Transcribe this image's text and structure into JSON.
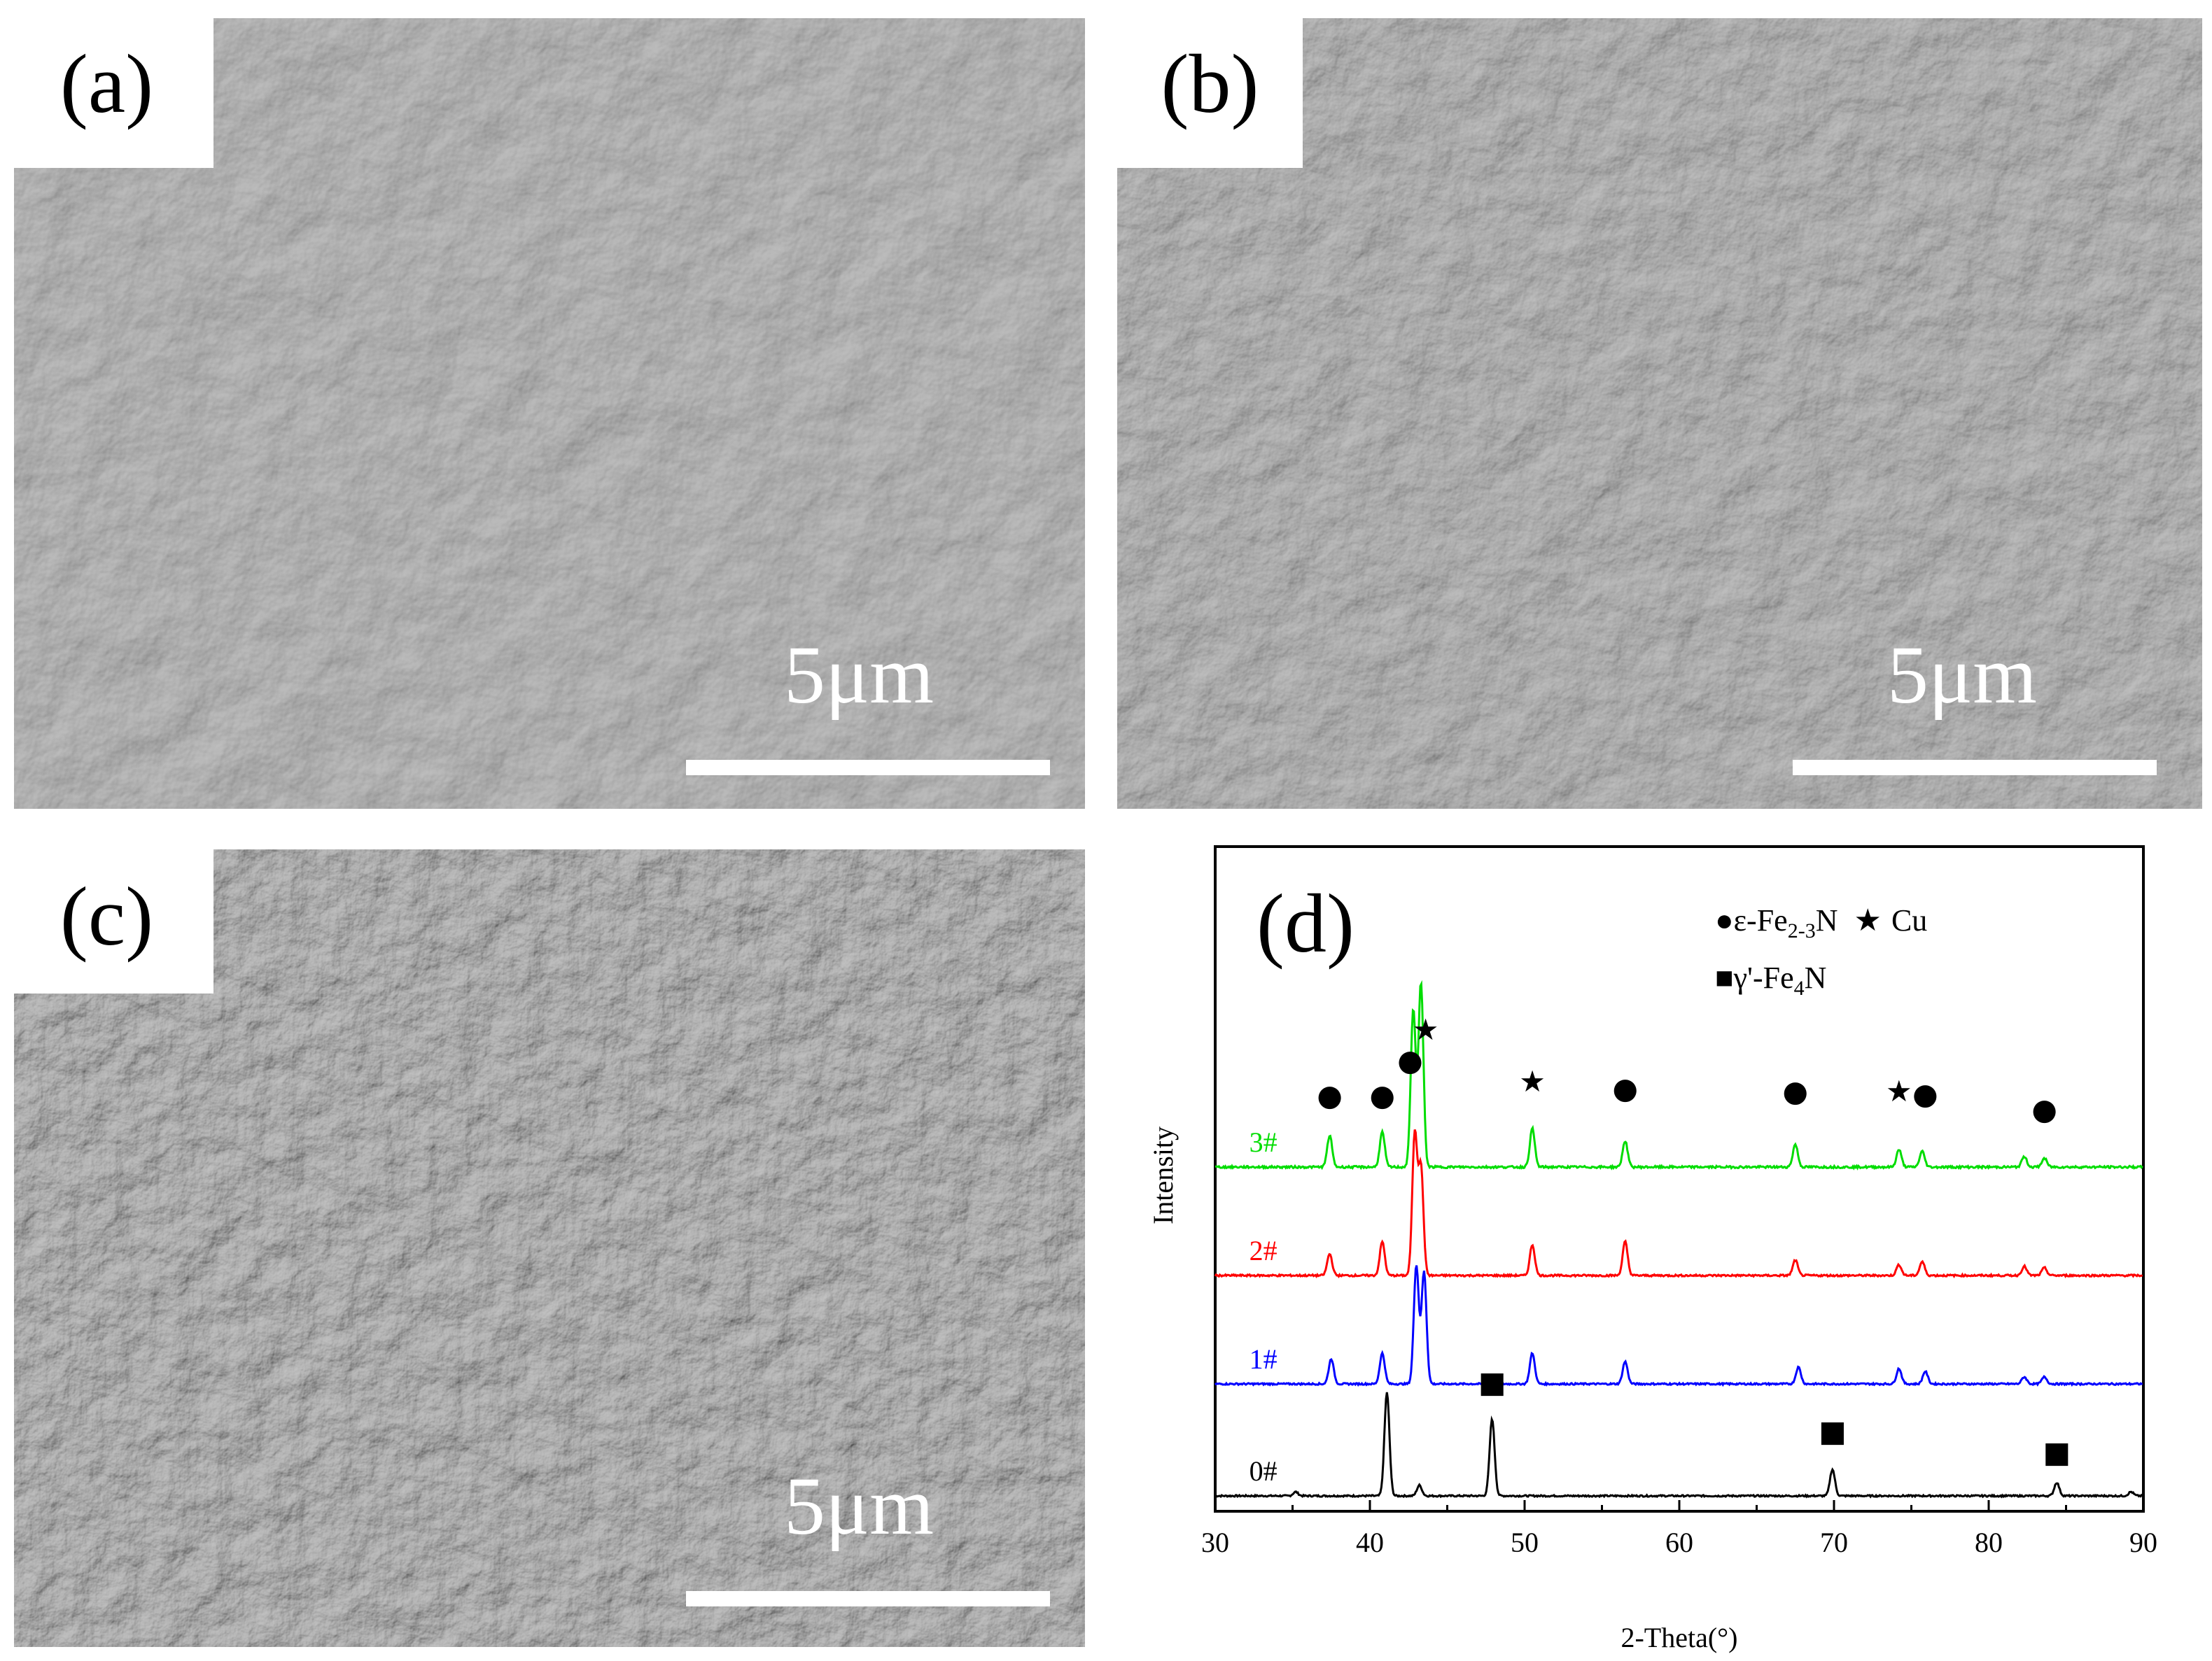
{
  "panels": {
    "a": {
      "label": "(a)",
      "scale": "5μm"
    },
    "b": {
      "label": "(b)",
      "scale": "5μm"
    },
    "c": {
      "label": "(c)",
      "scale": "5μm"
    },
    "d": {
      "label": "(d)"
    }
  },
  "chart_data": {
    "type": "line",
    "title": "",
    "xlabel": "2-Theta(°)",
    "ylabel": "Intensity",
    "xlim": [
      30,
      90
    ],
    "xticks": [
      "30",
      "40",
      "50",
      "60",
      "70",
      "80",
      "90"
    ],
    "grid": false,
    "legend_position": "top-right",
    "legend": [
      {
        "symbol": "●",
        "text": "ε-Fe",
        "sub": "2-3",
        "tail": "N"
      },
      {
        "symbol": "★",
        "text": "Cu"
      },
      {
        "symbol": "■",
        "text": "γ'-Fe",
        "sub": "4",
        "tail": "N"
      }
    ],
    "series": [
      {
        "name": "0#",
        "color": "#000000",
        "peaks": [
          [
            35.2,
            0.03
          ],
          [
            41.1,
            0.78
          ],
          [
            43.2,
            0.08
          ],
          [
            47.9,
            0.58
          ],
          [
            69.9,
            0.2
          ],
          [
            84.4,
            0.1
          ],
          [
            89.2,
            0.03
          ]
        ]
      },
      {
        "name": "1#",
        "color": "#0000ff",
        "peaks": [
          [
            37.5,
            0.18
          ],
          [
            40.8,
            0.22
          ],
          [
            43.0,
            0.85
          ],
          [
            43.5,
            0.8
          ],
          [
            50.5,
            0.22
          ],
          [
            56.5,
            0.16
          ],
          [
            67.7,
            0.12
          ],
          [
            74.2,
            0.11
          ],
          [
            75.9,
            0.09
          ],
          [
            82.3,
            0.05
          ],
          [
            83.6,
            0.05
          ]
        ]
      },
      {
        "name": "2#",
        "color": "#ff0000",
        "peaks": [
          [
            37.4,
            0.14
          ],
          [
            40.8,
            0.22
          ],
          [
            42.9,
            0.92
          ],
          [
            43.3,
            0.7
          ],
          [
            50.5,
            0.2
          ],
          [
            56.5,
            0.22
          ],
          [
            67.5,
            0.1
          ],
          [
            74.2,
            0.07
          ],
          [
            75.7,
            0.09
          ],
          [
            82.3,
            0.06
          ],
          [
            83.6,
            0.05
          ]
        ]
      },
      {
        "name": "3#",
        "color": "#00dd00",
        "peaks": [
          [
            37.4,
            0.18
          ],
          [
            40.8,
            0.2
          ],
          [
            42.8,
            0.9
          ],
          [
            43.3,
            1.05
          ],
          [
            50.5,
            0.22
          ],
          [
            56.5,
            0.15
          ],
          [
            67.5,
            0.13
          ],
          [
            74.2,
            0.1
          ],
          [
            75.7,
            0.09
          ],
          [
            82.3,
            0.06
          ],
          [
            83.6,
            0.05
          ]
        ]
      }
    ],
    "markers": [
      {
        "series": "3#",
        "symbol": "●",
        "x": 37.4
      },
      {
        "series": "3#",
        "symbol": "●",
        "x": 40.8
      },
      {
        "series": "3#",
        "symbol": "●",
        "x": 42.6
      },
      {
        "series": "3#",
        "symbol": "★",
        "x": 43.6
      },
      {
        "series": "3#",
        "symbol": "★",
        "x": 50.5
      },
      {
        "series": "3#",
        "symbol": "●",
        "x": 56.5
      },
      {
        "series": "3#",
        "symbol": "●",
        "x": 67.5
      },
      {
        "series": "3#",
        "symbol": "★",
        "x": 74.2
      },
      {
        "series": "3#",
        "symbol": "●",
        "x": 75.9
      },
      {
        "series": "3#",
        "symbol": "●",
        "x": 83.6
      },
      {
        "series": "0#",
        "symbol": "■",
        "x": 47.9
      },
      {
        "series": "0#",
        "symbol": "■",
        "x": 69.9
      },
      {
        "series": "0#",
        "symbol": "■",
        "x": 84.4
      }
    ]
  }
}
